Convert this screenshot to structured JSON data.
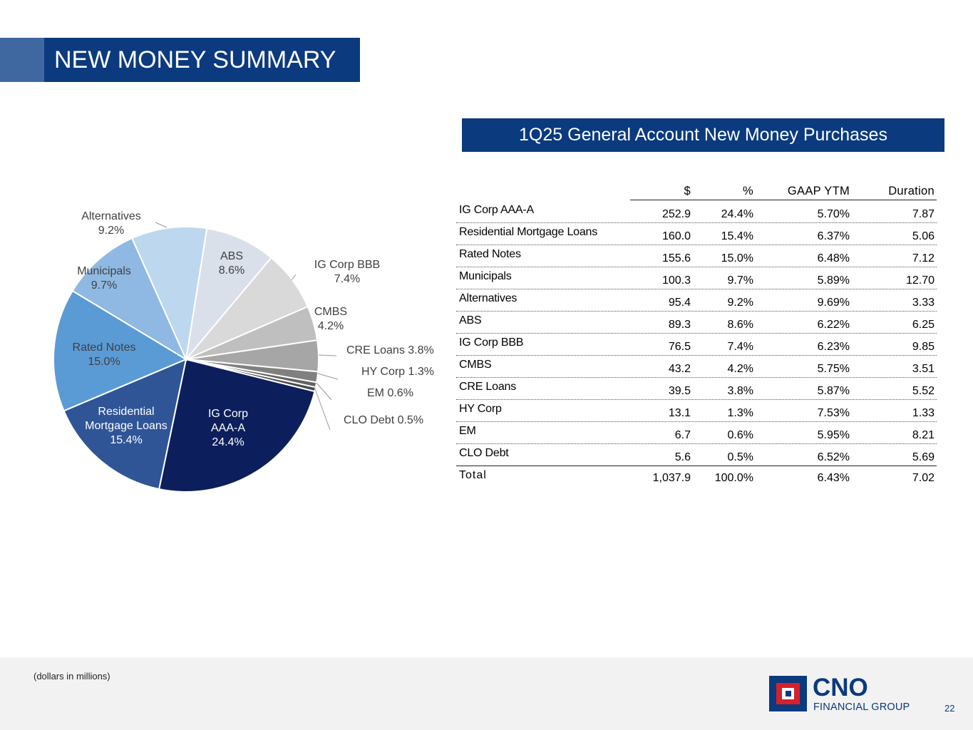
{
  "page": {
    "title": "NEW MONEY SUMMARY",
    "table_title": "1Q25 General Account New Money Purchases",
    "footnote": "(dollars in millions)",
    "page_number": "22",
    "logo": {
      "name": "CNO",
      "sub": "FINANCIAL GROUP"
    }
  },
  "table": {
    "columns": [
      "$",
      "%",
      "GAAP YTM",
      "Duration"
    ],
    "rows": [
      {
        "label": "IG Corp AAA-A",
        "amount": "252.9",
        "pct": "24.4%",
        "ytm": "5.70%",
        "duration": "7.87"
      },
      {
        "label": "Residential Mortgage Loans",
        "amount": "160.0",
        "pct": "15.4%",
        "ytm": "6.37%",
        "duration": "5.06"
      },
      {
        "label": "Rated Notes",
        "amount": "155.6",
        "pct": "15.0%",
        "ytm": "6.48%",
        "duration": "7.12"
      },
      {
        "label": "Municipals",
        "amount": "100.3",
        "pct": "9.7%",
        "ytm": "5.89%",
        "duration": "12.70"
      },
      {
        "label": "Alternatives",
        "amount": "95.4",
        "pct": "9.2%",
        "ytm": "9.69%",
        "duration": "3.33"
      },
      {
        "label": "ABS",
        "amount": "89.3",
        "pct": "8.6%",
        "ytm": "6.22%",
        "duration": "6.25"
      },
      {
        "label": "IG Corp BBB",
        "amount": "76.5",
        "pct": "7.4%",
        "ytm": "6.23%",
        "duration": "9.85"
      },
      {
        "label": "CMBS",
        "amount": "43.2",
        "pct": "4.2%",
        "ytm": "5.75%",
        "duration": "3.51"
      },
      {
        "label": "CRE Loans",
        "amount": "39.5",
        "pct": "3.8%",
        "ytm": "5.87%",
        "duration": "5.52"
      },
      {
        "label": "HY Corp",
        "amount": "13.1",
        "pct": "1.3%",
        "ytm": "7.53%",
        "duration": "1.33"
      },
      {
        "label": "EM",
        "amount": "6.7",
        "pct": "0.6%",
        "ytm": "5.95%",
        "duration": "8.21"
      },
      {
        "label": "CLO Debt",
        "amount": "5.6",
        "pct": "0.5%",
        "ytm": "6.52%",
        "duration": "5.69"
      }
    ],
    "total": {
      "label": "Total",
      "amount": "1,037.9",
      "pct": "100.0%",
      "ytm": "6.43%",
      "duration": "7.02"
    }
  },
  "chart_data": {
    "type": "pie",
    "title": "",
    "categories": [
      "IG Corp AAA-A",
      "Residential Mortgage Loans",
      "Rated Notes",
      "Municipals",
      "Alternatives",
      "ABS",
      "IG Corp BBB",
      "CMBS",
      "CRE Loans",
      "HY Corp",
      "EM",
      "CLO Debt"
    ],
    "values": [
      24.4,
      15.4,
      15.0,
      9.7,
      9.2,
      8.6,
      7.4,
      4.2,
      3.8,
      1.3,
      0.6,
      0.5
    ],
    "data_labels": [
      [
        "IG Corp",
        "AAA-A",
        "24.4%"
      ],
      [
        "Residential",
        "Mortgage Loans",
        "15.4%"
      ],
      [
        "Rated Notes",
        "15.0%"
      ],
      [
        "Municipals",
        "9.7%"
      ],
      [
        "Alternatives",
        "9.2%"
      ],
      [
        "ABS",
        "8.6%"
      ],
      [
        "IG Corp BBB",
        "7.4%"
      ],
      [
        "CMBS",
        "4.2%"
      ],
      [
        "CRE Loans 3.8%"
      ],
      [
        "HY Corp 1.3%"
      ],
      [
        "EM 0.6%"
      ],
      [
        "CLO Debt 0.5%"
      ]
    ],
    "colors": [
      "#0c1f5c",
      "#2f5597",
      "#5b9bd5",
      "#8fb9e3",
      "#bdd7ee",
      "#dae0ea",
      "#d9d9d9",
      "#bfbfbf",
      "#a6a6a6",
      "#808080",
      "#636363",
      "#4a4a4a"
    ],
    "label_colors": [
      "#ffffff",
      "#ffffff",
      "#404040",
      "#404040",
      "#404040",
      "#404040",
      "#404040",
      "#404040",
      "#404040",
      "#404040",
      "#404040",
      "#404040"
    ]
  }
}
